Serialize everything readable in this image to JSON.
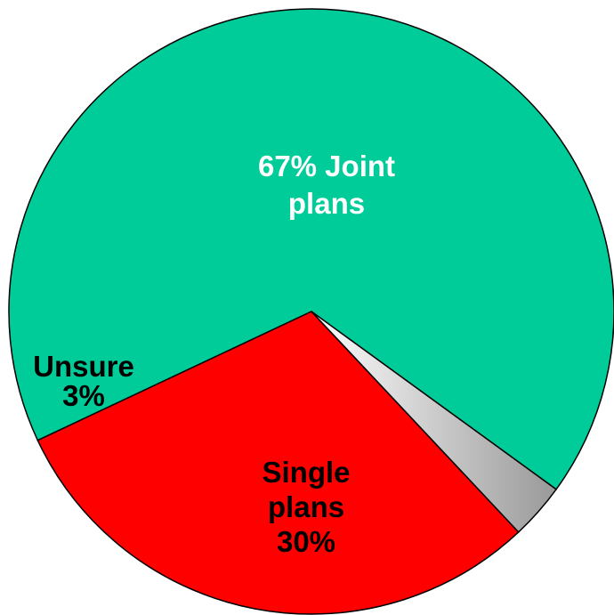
{
  "chart_data": {
    "type": "pie",
    "slices": [
      {
        "label_lines": [
          "67% Joint",
          "plans"
        ],
        "value": 67,
        "color": "#00CC99",
        "text_color": "#FFFFFF"
      },
      {
        "label_lines": [
          "Single",
          "plans",
          "30%"
        ],
        "value": 30,
        "color": "#FF0000",
        "text_color": "#000000"
      },
      {
        "label_lines": [
          "Unsure",
          "3%"
        ],
        "value": 3,
        "color": "#E6E6E6",
        "text_color": "#000000"
      }
    ],
    "title": "",
    "legend": "none"
  }
}
